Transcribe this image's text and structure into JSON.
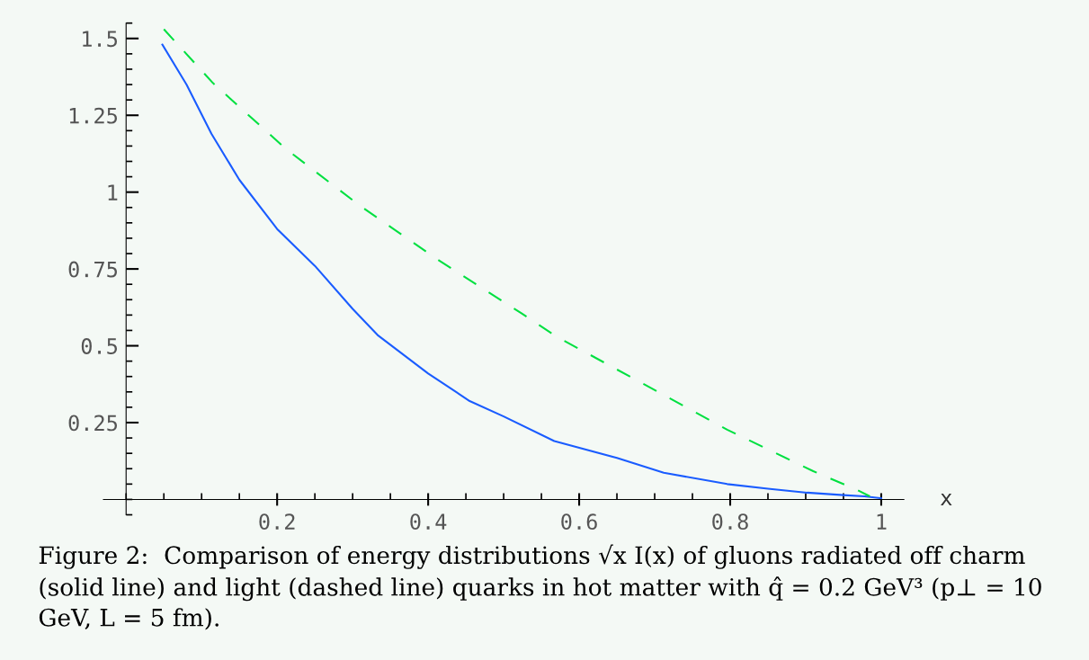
{
  "chart_data": {
    "type": "line",
    "xlabel": "x",
    "xlim": [
      -0.03,
      1.03
    ],
    "ylim": [
      -0.05,
      1.55
    ],
    "xticks": [
      0.2,
      0.4,
      0.6,
      0.8,
      1
    ],
    "yticks": [
      0.25,
      0.5,
      0.75,
      1,
      1.25,
      1.5
    ],
    "grid": false,
    "legend": false,
    "series": [
      {
        "color": "#1a5cff",
        "line_style": "solid",
        "x": [
          0.048,
          0.08,
          0.113,
          0.15,
          0.2,
          0.25,
          0.3,
          0.333,
          0.4,
          0.455,
          0.5,
          0.567,
          0.65,
          0.712,
          0.796,
          0.85,
          0.902,
          0.95,
          0.978,
          1.0
        ],
        "values": [
          1.48,
          1.35,
          1.19,
          1.04,
          0.88,
          0.76,
          0.62,
          0.535,
          0.41,
          0.32,
          0.27,
          0.19,
          0.135,
          0.087,
          0.05,
          0.035,
          0.022,
          0.014,
          0.01,
          0.004
        ]
      },
      {
        "color": "#00e040",
        "line_style": "dashed",
        "x": [
          0.05,
          0.115,
          0.212,
          0.31,
          0.413,
          0.524,
          0.57,
          0.679,
          0.796,
          0.91,
          0.969,
          0.985
        ],
        "values": [
          1.53,
          1.355,
          1.14,
          0.955,
          0.78,
          0.605,
          0.53,
          0.384,
          0.227,
          0.092,
          0.03,
          0.01
        ]
      }
    ],
    "annotations": [
      "Figure 2:  Comparison of energy distributions √x I(x) of gluons radiated off charm (solid line) and light (dashed line) quarks in hot matter with q̂ = 0.2 GeV³ (p⊥ = 10 GeV, L = 5 fm)."
    ]
  }
}
